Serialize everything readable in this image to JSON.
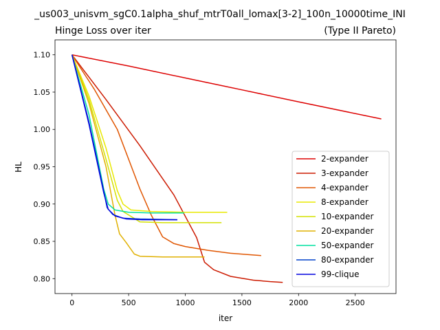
{
  "figure": {
    "suptitle": "_us003_unisvm_sgC0.1alpha_shuf_mtrT0all_lomax[3-2]_100n_10000time_INI",
    "title_left": "Hinge Loss over iter",
    "title_right": "(Type II Pareto)"
  },
  "chart_data": {
    "type": "line",
    "xlabel": "iter",
    "ylabel": "HL",
    "xlim": [
      -150,
      2860
    ],
    "ylim": [
      0.78,
      1.12
    ],
    "xticks": [
      0,
      500,
      1000,
      1500,
      2000,
      2500
    ],
    "xtick_labels": [
      "0",
      "500",
      "1000",
      "1500",
      "2000",
      "2500"
    ],
    "yticks": [
      0.8,
      0.85,
      0.9,
      0.95,
      1.0,
      1.05,
      1.1
    ],
    "ytick_labels": [
      "0.80",
      "0.85",
      "0.90",
      "0.95",
      "1.00",
      "1.05",
      "1.10"
    ],
    "grid": false,
    "legend_position": "lower-right",
    "series": [
      {
        "name": "2-expander",
        "color": "#dd0000",
        "points": [
          [
            0,
            1.1
          ],
          [
            500,
            1.085
          ],
          [
            1000,
            1.069
          ],
          [
            1500,
            1.053
          ],
          [
            2000,
            1.037
          ],
          [
            2730,
            1.014
          ]
        ]
      },
      {
        "name": "3-expander",
        "color": "#cc1a00",
        "points": [
          [
            0,
            1.1
          ],
          [
            300,
            1.04
          ],
          [
            600,
            0.978
          ],
          [
            900,
            0.912
          ],
          [
            1100,
            0.855
          ],
          [
            1170,
            0.822
          ],
          [
            1250,
            0.812
          ],
          [
            1400,
            0.803
          ],
          [
            1600,
            0.798
          ],
          [
            1750,
            0.796
          ],
          [
            1860,
            0.795
          ]
        ]
      },
      {
        "name": "4-expander",
        "color": "#e05500",
        "points": [
          [
            0,
            1.1
          ],
          [
            200,
            1.053
          ],
          [
            400,
            1.0
          ],
          [
            600,
            0.92
          ],
          [
            700,
            0.885
          ],
          [
            800,
            0.856
          ],
          [
            900,
            0.847
          ],
          [
            1000,
            0.843
          ],
          [
            1200,
            0.838
          ],
          [
            1400,
            0.834
          ],
          [
            1670,
            0.831
          ]
        ]
      },
      {
        "name": "8-expander",
        "color": "#e8e800",
        "points": [
          [
            0,
            1.1
          ],
          [
            150,
            1.045
          ],
          [
            300,
            0.975
          ],
          [
            400,
            0.918
          ],
          [
            450,
            0.9
          ],
          [
            520,
            0.892
          ],
          [
            700,
            0.89
          ],
          [
            1000,
            0.889
          ],
          [
            1370,
            0.889
          ]
        ]
      },
      {
        "name": "10-expander",
        "color": "#d4e000",
        "points": [
          [
            0,
            1.1
          ],
          [
            150,
            1.04
          ],
          [
            300,
            0.96
          ],
          [
            400,
            0.905
          ],
          [
            450,
            0.89
          ],
          [
            600,
            0.876
          ],
          [
            800,
            0.875
          ],
          [
            1320,
            0.875
          ]
        ]
      },
      {
        "name": "20-expander",
        "color": "#e0b000",
        "points": [
          [
            0,
            1.1
          ],
          [
            150,
            1.035
          ],
          [
            300,
            0.95
          ],
          [
            380,
            0.885
          ],
          [
            420,
            0.86
          ],
          [
            480,
            0.848
          ],
          [
            550,
            0.833
          ],
          [
            600,
            0.83
          ],
          [
            800,
            0.829
          ],
          [
            1170,
            0.829
          ]
        ]
      },
      {
        "name": "50-expander",
        "color": "#00e0a0",
        "points": [
          [
            0,
            1.1
          ],
          [
            150,
            1.02
          ],
          [
            280,
            0.92
          ],
          [
            320,
            0.9
          ],
          [
            380,
            0.892
          ],
          [
            500,
            0.889
          ],
          [
            700,
            0.888
          ],
          [
            990,
            0.888
          ]
        ]
      },
      {
        "name": "80-expander",
        "color": "#0040cc",
        "points": [
          [
            0,
            1.1
          ],
          [
            150,
            1.01
          ],
          [
            270,
            0.925
          ],
          [
            310,
            0.895
          ],
          [
            360,
            0.886
          ],
          [
            450,
            0.881
          ],
          [
            600,
            0.88
          ],
          [
            930,
            0.879
          ]
        ]
      },
      {
        "name": "99-clique",
        "color": "#0000dd",
        "points": [
          [
            0,
            1.1
          ],
          [
            150,
            1.007
          ],
          [
            280,
            0.915
          ],
          [
            320,
            0.893
          ],
          [
            380,
            0.884
          ],
          [
            480,
            0.88
          ],
          [
            620,
            0.879
          ],
          [
            930,
            0.879
          ]
        ]
      }
    ]
  }
}
